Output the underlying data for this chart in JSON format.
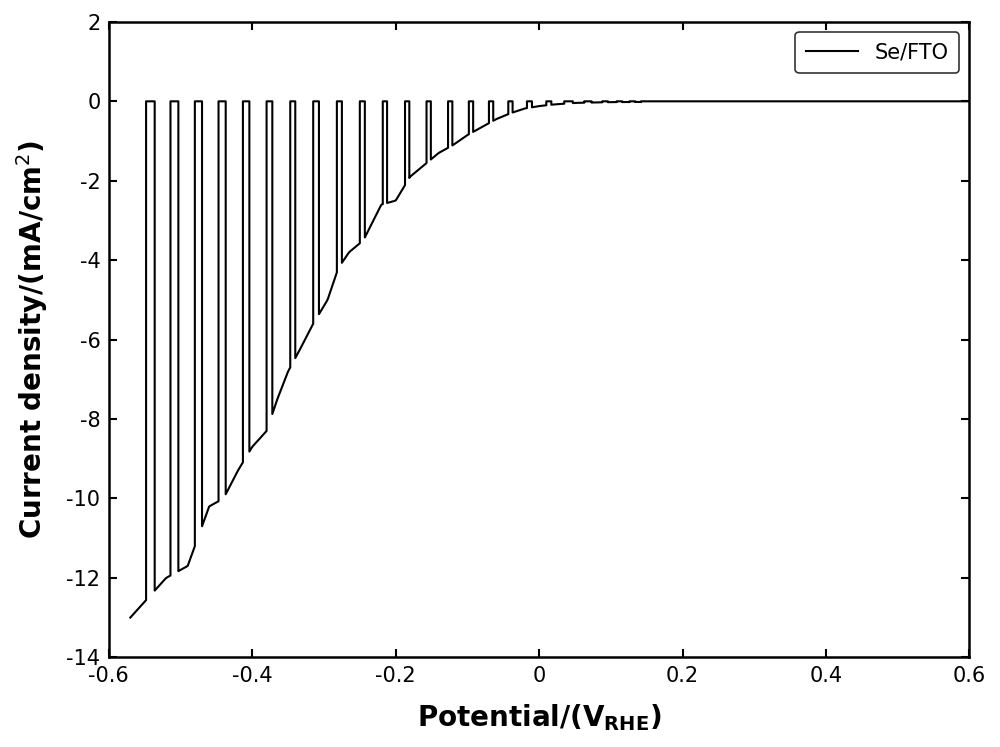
{
  "xlabel": "Potential/(V$_{\\mathrm{RHE}}$)",
  "ylabel": "Current density/(mA/cm$^2$)",
  "xlim": [
    -0.6,
    0.6
  ],
  "ylim": [
    -14,
    2
  ],
  "xticks": [
    -0.6,
    -0.4,
    -0.2,
    0.0,
    0.2,
    0.4,
    0.6
  ],
  "yticks": [
    -14,
    -12,
    -10,
    -8,
    -6,
    -4,
    -2,
    0,
    2
  ],
  "legend_label": "Se/FTO",
  "line_color": "#000000",
  "line_width": 1.5,
  "background_color": "#ffffff",
  "cycle_data": {
    "comment": "Each entry: [v_light_on_start, v_light_on_end, i_peak] - light ON gives negative photocurrent, light OFF gives ~0",
    "envelope_points": [
      [
        -0.57,
        -13.0
      ],
      [
        -0.52,
        -12.0
      ],
      [
        -0.49,
        -11.7
      ],
      [
        -0.46,
        -10.2
      ],
      [
        -0.44,
        -10.0
      ],
      [
        -0.42,
        -9.3
      ],
      [
        -0.4,
        -8.7
      ],
      [
        -0.38,
        -8.3
      ],
      [
        -0.365,
        -7.5
      ],
      [
        -0.35,
        -6.8
      ],
      [
        -0.335,
        -6.3
      ],
      [
        -0.315,
        -5.6
      ],
      [
        -0.295,
        -5.0
      ],
      [
        -0.28,
        -4.2
      ],
      [
        -0.265,
        -3.8
      ],
      [
        -0.245,
        -3.5
      ],
      [
        -0.22,
        -2.6
      ],
      [
        -0.2,
        -2.5
      ],
      [
        -0.18,
        -1.9
      ],
      [
        -0.16,
        -1.6
      ],
      [
        -0.14,
        -1.3
      ],
      [
        -0.12,
        -1.1
      ],
      [
        -0.1,
        -0.85
      ],
      [
        -0.08,
        -0.65
      ],
      [
        -0.06,
        -0.45
      ],
      [
        -0.04,
        -0.3
      ],
      [
        -0.02,
        -0.18
      ],
      [
        0.0,
        -0.12
      ],
      [
        0.02,
        -0.08
      ],
      [
        0.05,
        -0.04
      ],
      [
        0.1,
        -0.02
      ],
      [
        0.2,
        -0.01
      ],
      [
        0.55,
        -0.005
      ]
    ]
  }
}
